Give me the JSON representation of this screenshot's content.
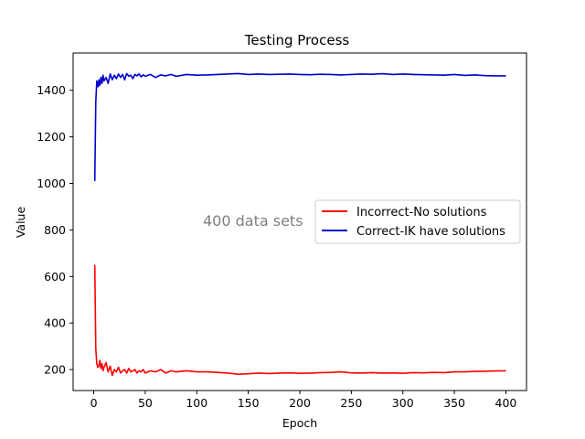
{
  "chart_data": {
    "type": "line",
    "title": "Testing Process",
    "xlabel": "Epoch",
    "ylabel": "Value",
    "xlim": [
      -20,
      420
    ],
    "ylim": [
      110,
      1560
    ],
    "xticks": [
      0,
      50,
      100,
      150,
      200,
      250,
      300,
      350,
      400
    ],
    "yticks": [
      200,
      400,
      600,
      800,
      1000,
      1200,
      1400
    ],
    "grid": false,
    "legend_position": "center-right",
    "annotation": "400 data sets",
    "annotation_color": "#808080",
    "series": [
      {
        "name": "Incorrect-No solutions",
        "color": "#ff0000",
        "x": [
          1,
          2,
          3,
          4,
          5,
          6,
          7,
          8,
          9,
          10,
          12,
          14,
          16,
          18,
          20,
          22,
          24,
          26,
          28,
          30,
          32,
          34,
          36,
          38,
          40,
          42,
          44,
          46,
          48,
          50,
          55,
          60,
          65,
          70,
          75,
          80,
          90,
          100,
          110,
          120,
          130,
          140,
          150,
          160,
          170,
          180,
          190,
          200,
          210,
          220,
          230,
          240,
          250,
          260,
          270,
          280,
          290,
          300,
          310,
          320,
          330,
          340,
          350,
          360,
          370,
          380,
          390,
          400
        ],
        "y": [
          650,
          290,
          225,
          210,
          215,
          240,
          205,
          225,
          195,
          210,
          230,
          190,
          215,
          175,
          200,
          190,
          210,
          185,
          195,
          200,
          185,
          205,
          190,
          195,
          200,
          185,
          195,
          190,
          200,
          185,
          195,
          190,
          200,
          185,
          195,
          190,
          195,
          190,
          190,
          188,
          185,
          180,
          182,
          185,
          183,
          185,
          186,
          184,
          185,
          187,
          188,
          190,
          186,
          185,
          187,
          185,
          186,
          184,
          187,
          186,
          188,
          187,
          190,
          190,
          192,
          193,
          194,
          195
        ]
      },
      {
        "name": "Correct-IK have solutions",
        "color": "#0000cc",
        "x": [
          1,
          2,
          3,
          4,
          5,
          6,
          7,
          8,
          9,
          10,
          12,
          14,
          16,
          18,
          20,
          22,
          24,
          26,
          28,
          30,
          32,
          34,
          36,
          38,
          40,
          42,
          44,
          46,
          48,
          50,
          55,
          60,
          65,
          70,
          75,
          80,
          90,
          100,
          110,
          120,
          130,
          140,
          150,
          160,
          170,
          180,
          190,
          200,
          210,
          220,
          230,
          240,
          250,
          260,
          270,
          280,
          290,
          300,
          310,
          320,
          330,
          340,
          350,
          360,
          370,
          380,
          390,
          400
        ],
        "y": [
          1010,
          1350,
          1440,
          1415,
          1445,
          1420,
          1455,
          1430,
          1465,
          1440,
          1455,
          1430,
          1470,
          1445,
          1465,
          1450,
          1470,
          1455,
          1468,
          1445,
          1472,
          1460,
          1465,
          1450,
          1468,
          1462,
          1470,
          1458,
          1466,
          1460,
          1468,
          1455,
          1466,
          1462,
          1468,
          1460,
          1468,
          1465,
          1466,
          1468,
          1470,
          1472,
          1468,
          1470,
          1468,
          1469,
          1470,
          1468,
          1467,
          1469,
          1468,
          1466,
          1468,
          1470,
          1469,
          1471,
          1468,
          1470,
          1468,
          1467,
          1466,
          1465,
          1468,
          1464,
          1466,
          1463,
          1462,
          1462
        ]
      }
    ]
  }
}
